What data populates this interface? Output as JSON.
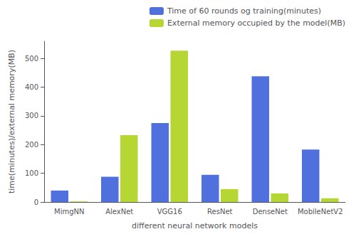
{
  "chart_data": {
    "type": "bar",
    "categories": [
      "MimgNN",
      "AlexNet",
      "VGG16",
      "ResNet",
      "DenseNet",
      "MobileNetV2"
    ],
    "series": [
      {
        "name": "Time of 60 rounds og training(minutes)",
        "values": [
          40,
          88,
          275,
          95,
          438,
          183
        ]
      },
      {
        "name": "External memory occupied by the model(MB)",
        "values": [
          2,
          233,
          527,
          45,
          30,
          13
        ]
      }
    ],
    "xlabel": "different neural network models",
    "ylabel": "time(minutes)/external memory(MB)",
    "ylim": [
      0,
      560
    ],
    "yticks": [
      0,
      100,
      200,
      300,
      400,
      500
    ],
    "grid": false,
    "legend": "upper right"
  }
}
